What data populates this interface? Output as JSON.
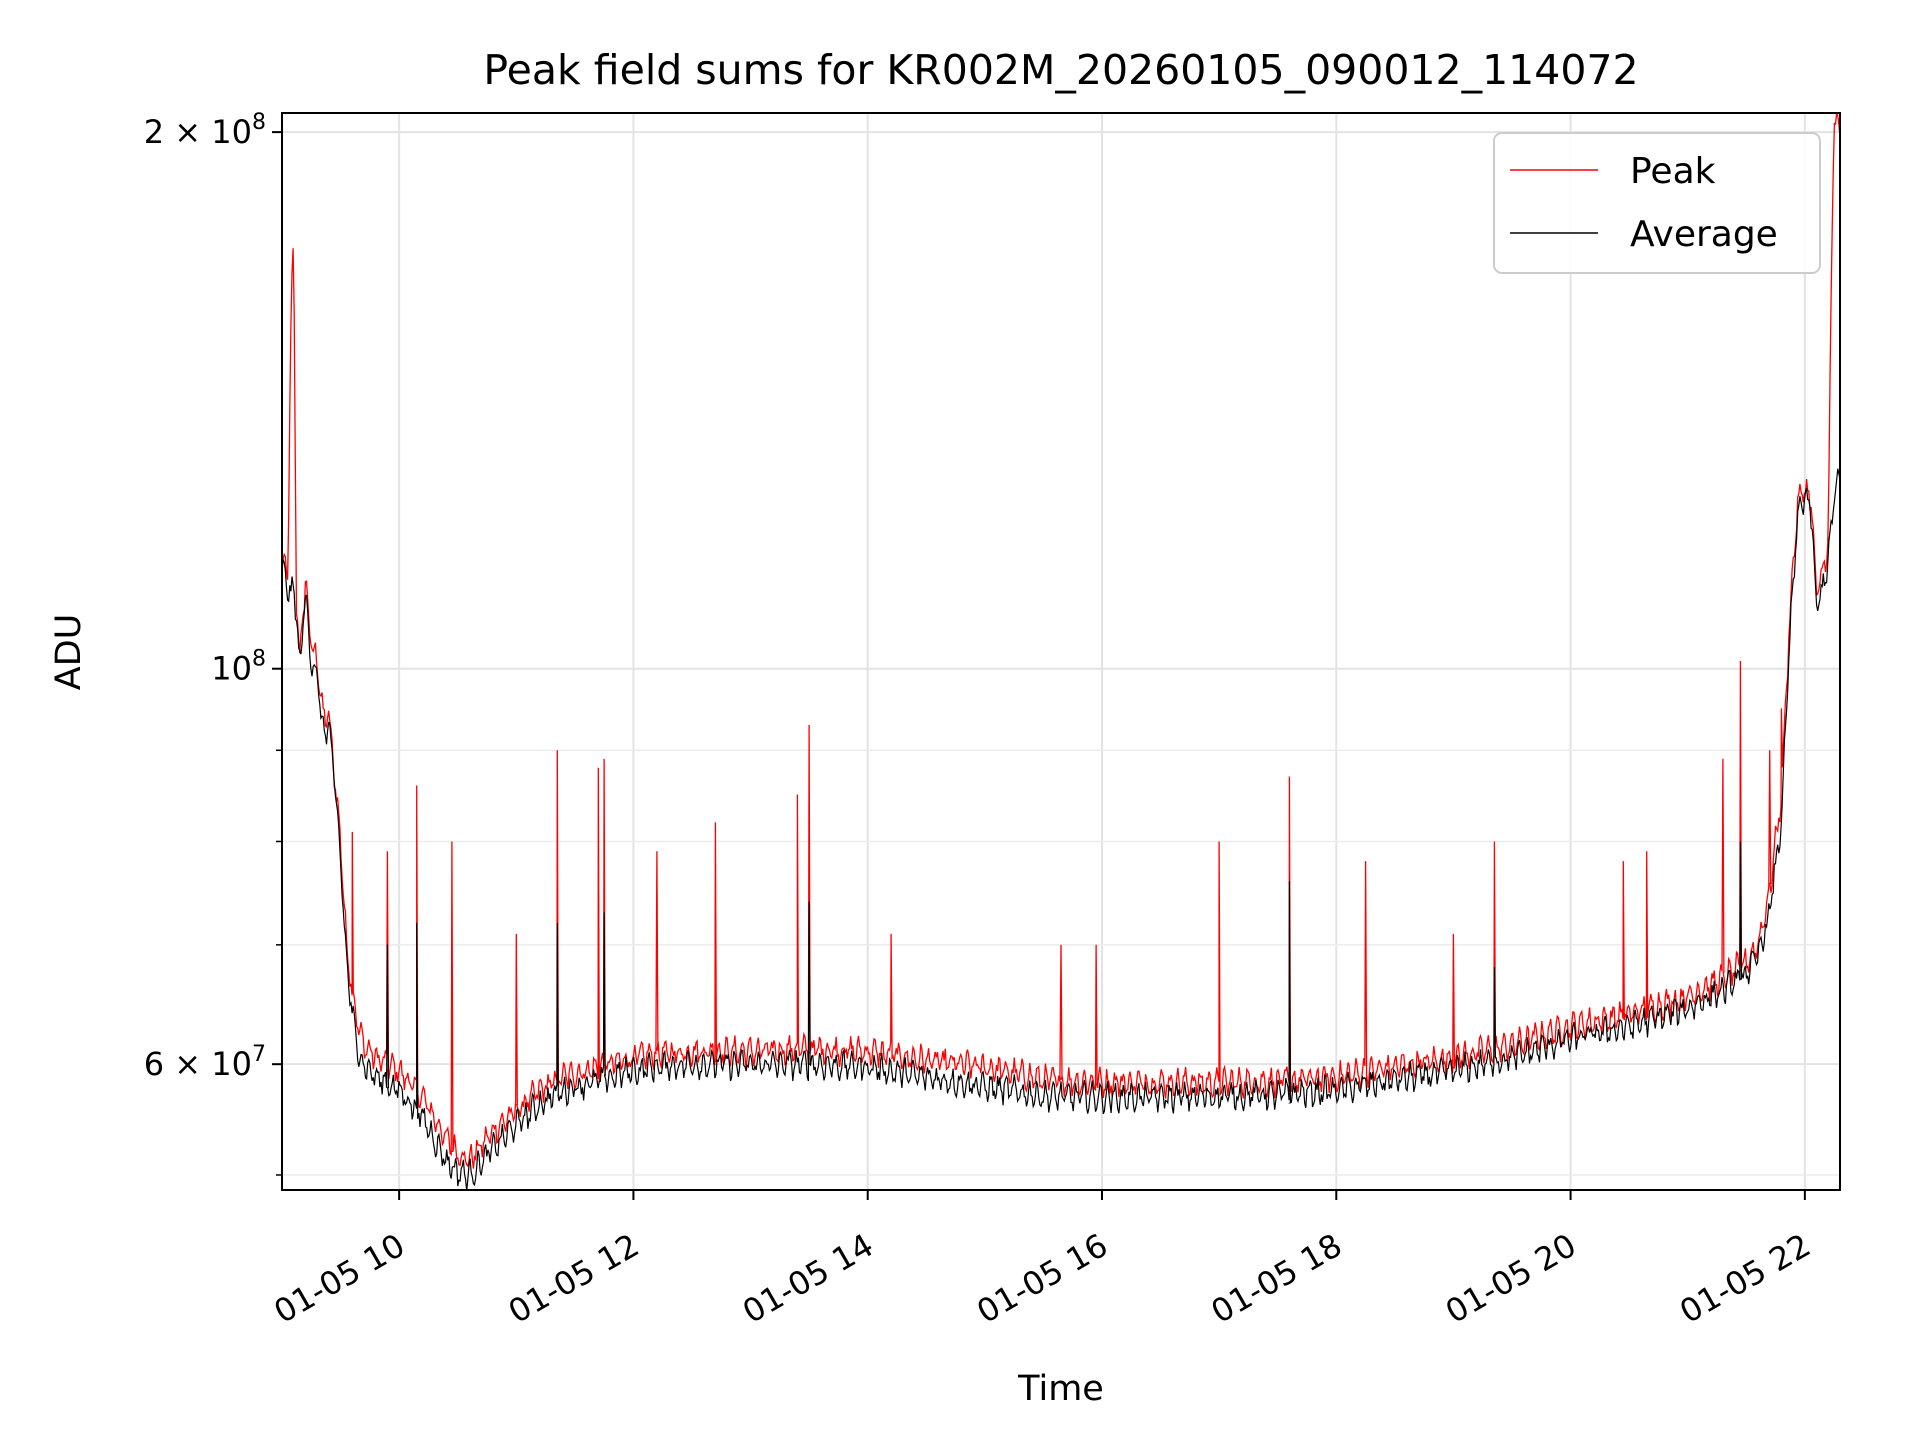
{
  "chart_data": {
    "type": "line",
    "title": "Peak field sums for KR002M_20260105_090012_114072",
    "xlabel": "Time",
    "ylabel": "ADU",
    "x_range_hours": [
      9.0,
      22.3
    ],
    "ylim": [
      51000000,
      205000000
    ],
    "yscale": "log",
    "grid": true,
    "legend_position": "top-right",
    "x_ticks": [
      {
        "value": 10,
        "label": "01-05 10"
      },
      {
        "value": 12,
        "label": "01-05 12"
      },
      {
        "value": 14,
        "label": "01-05 14"
      },
      {
        "value": 16,
        "label": "01-05 16"
      },
      {
        "value": 18,
        "label": "01-05 18"
      },
      {
        "value": 20,
        "label": "01-05 20"
      },
      {
        "value": 22,
        "label": "01-05 22"
      }
    ],
    "y_ticks_major": [
      {
        "value": 200000000,
        "base": "2 × 10",
        "exp": "8"
      },
      {
        "value": 100000000,
        "base": "10",
        "exp": "8"
      },
      {
        "value": 60000000,
        "base": "6 × 10",
        "exp": "7"
      }
    ],
    "y_ticks_minor": [
      70000000,
      80000000,
      90000000,
      52000000
    ],
    "series": [
      {
        "name": "Peak",
        "color": "#ff0000",
        "x": [
          9.0,
          9.05,
          9.08,
          9.1,
          9.12,
          9.15,
          9.2,
          9.25,
          9.3,
          9.35,
          9.4,
          9.45,
          9.5,
          9.55,
          9.6,
          9.65,
          9.7,
          9.8,
          9.9,
          10.0,
          10.2,
          10.4,
          10.5,
          10.6,
          10.7,
          10.8,
          11.0,
          11.2,
          11.4,
          11.6,
          11.8,
          12.0,
          12.2,
          12.5,
          12.8,
          13.0,
          13.5,
          14.0,
          14.5,
          15.0,
          15.5,
          16.0,
          16.5,
          17.0,
          17.5,
          18.0,
          18.5,
          19.0,
          19.5,
          20.0,
          20.5,
          21.0,
          21.3,
          21.5,
          21.6,
          21.7,
          21.8,
          21.85,
          21.9,
          21.95,
          22.0,
          22.05,
          22.1,
          22.15,
          22.2,
          22.25,
          22.3
        ],
        "y": [
          115000000,
          113000000,
          160000000,
          174000000,
          110000000,
          101000000,
          112000000,
          103000000,
          101000000,
          94000000,
          94000000,
          87000000,
          80000000,
          70000000,
          66000000,
          63000000,
          61500000,
          60500000,
          60000000,
          59500000,
          57500000,
          54500000,
          53500000,
          53000000,
          54000000,
          55000000,
          56500000,
          58000000,
          59000000,
          59500000,
          60000000,
          60500000,
          60800000,
          61000000,
          61000000,
          61000000,
          61200000,
          61000000,
          60300000,
          59800000,
          58800000,
          58600000,
          58600000,
          58600000,
          58700000,
          59000000,
          59800000,
          60500000,
          61500000,
          63000000,
          64000000,
          65500000,
          67000000,
          68500000,
          70000000,
          75000000,
          85000000,
          100000000,
          115000000,
          125000000,
          126000000,
          125000000,
          110000000,
          113000000,
          118000000,
          205000000,
          198000000
        ],
        "spikes": [
          [
            9.9,
            79000000
          ],
          [
            9.6,
            81000000
          ],
          [
            10.15,
            86000000
          ],
          [
            10.45,
            80000000
          ],
          [
            11.0,
            71000000
          ],
          [
            11.35,
            90000000
          ],
          [
            11.7,
            88000000
          ],
          [
            11.75,
            89000000
          ],
          [
            12.2,
            79000000
          ],
          [
            12.7,
            82000000
          ],
          [
            13.4,
            85000000
          ],
          [
            13.5,
            93000000
          ],
          [
            14.2,
            71000000
          ],
          [
            15.65,
            70000000
          ],
          [
            15.95,
            70000000
          ],
          [
            17.0,
            80000000
          ],
          [
            17.6,
            87000000
          ],
          [
            18.25,
            78000000
          ],
          [
            19.0,
            71000000
          ],
          [
            19.35,
            80000000
          ],
          [
            20.45,
            78000000
          ],
          [
            20.65,
            79000000
          ],
          [
            21.3,
            89000000
          ],
          [
            21.45,
            101000000
          ],
          [
            21.7,
            90000000
          ],
          [
            21.8,
            95000000
          ]
        ]
      },
      {
        "name": "Average",
        "color": "#000000",
        "x": [
          9.0,
          9.05,
          9.08,
          9.1,
          9.12,
          9.15,
          9.2,
          9.25,
          9.3,
          9.35,
          9.4,
          9.45,
          9.5,
          9.55,
          9.6,
          9.65,
          9.7,
          9.8,
          9.9,
          10.0,
          10.2,
          10.4,
          10.5,
          10.6,
          10.7,
          10.8,
          11.0,
          11.2,
          11.4,
          11.6,
          11.8,
          12.0,
          12.2,
          12.5,
          12.8,
          13.0,
          13.5,
          14.0,
          14.5,
          15.0,
          15.5,
          16.0,
          16.5,
          17.0,
          17.5,
          18.0,
          18.5,
          19.0,
          19.5,
          20.0,
          20.5,
          21.0,
          21.3,
          21.5,
          21.6,
          21.7,
          21.8,
          21.85,
          21.9,
          21.95,
          22.0,
          22.05,
          22.1,
          22.15,
          22.2,
          22.25,
          22.3
        ],
        "y": [
          114000000,
          111000000,
          110000000,
          111000000,
          108000000,
          100000000,
          110000000,
          101000000,
          99000000,
          92000000,
          93000000,
          86000000,
          78000000,
          68500000,
          64000000,
          61000000,
          60000000,
          59000000,
          58500000,
          58000000,
          56000000,
          53000000,
          52200000,
          52000000,
          52800000,
          53800000,
          55500000,
          57000000,
          58000000,
          58500000,
          59000000,
          59500000,
          59800000,
          60000000,
          60000000,
          60000000,
          60000000,
          59800000,
          59000000,
          58300000,
          57600000,
          57500000,
          57500000,
          57600000,
          57700000,
          58000000,
          58800000,
          59500000,
          60500000,
          62000000,
          63000000,
          64500000,
          66000000,
          67500000,
          69000000,
          73000000,
          82000000,
          97000000,
          112000000,
          123000000,
          125000000,
          123000000,
          108000000,
          111000000,
          115000000,
          125000000,
          128000000
        ],
        "spikes": [
          [
            9.9,
            70000000
          ],
          [
            10.15,
            72000000
          ],
          [
            11.35,
            72000000
          ],
          [
            11.75,
            73000000
          ],
          [
            13.5,
            74000000
          ],
          [
            17.6,
            76000000
          ],
          [
            19.35,
            68000000
          ],
          [
            21.45,
            80000000
          ]
        ]
      }
    ]
  }
}
